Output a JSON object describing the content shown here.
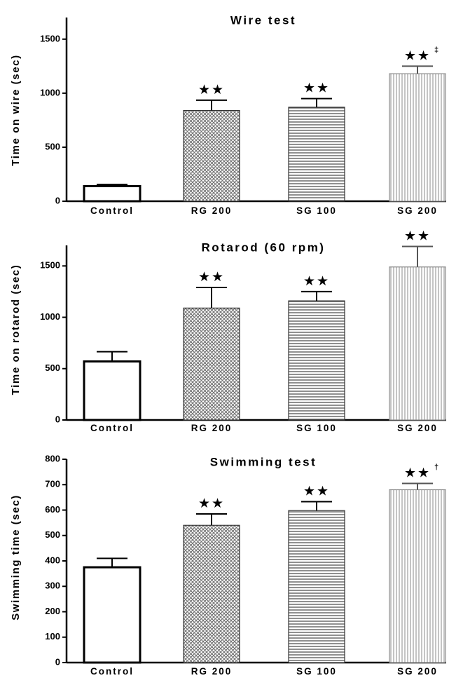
{
  "chart_data": [
    {
      "type": "bar",
      "title": "Wire test",
      "ylabel": "Time on wire (sec)",
      "xlabel": "",
      "categories": [
        "Control",
        "RG 200",
        "SG 100",
        "SG 200"
      ],
      "values": [
        140,
        840,
        870,
        1180
      ],
      "errors": [
        15,
        95,
        80,
        70
      ],
      "ylim": [
        0,
        1700
      ],
      "yticks": [
        "0",
        "500",
        "1000",
        "1500"
      ],
      "annotations": [
        {
          "category": "RG 200",
          "stars": "★★",
          "symbol": ""
        },
        {
          "category": "SG 100",
          "stars": "★★",
          "symbol": ""
        },
        {
          "category": "SG 200",
          "stars": "★★",
          "symbol": "‡"
        }
      ],
      "fills": [
        "white",
        "crosshatch",
        "horizontal-lines",
        "vertical-lines"
      ]
    },
    {
      "type": "bar",
      "title": "Rotarod (60 rpm)",
      "ylabel": "Time on rotarod (sec)",
      "xlabel": "",
      "categories": [
        "Control",
        "RG 200",
        "SG 100",
        "SG 200"
      ],
      "values": [
        570,
        1090,
        1160,
        1490
      ],
      "errors": [
        95,
        200,
        90,
        200
      ],
      "ylim": [
        0,
        1700
      ],
      "yticks": [
        "0",
        "500",
        "1000",
        "1500"
      ],
      "annotations": [
        {
          "category": "RG 200",
          "stars": "★★",
          "symbol": ""
        },
        {
          "category": "SG 100",
          "stars": "★★",
          "symbol": ""
        },
        {
          "category": "SG 200",
          "stars": "★★",
          "symbol": ""
        }
      ],
      "fills": [
        "white",
        "crosshatch",
        "horizontal-lines",
        "vertical-lines"
      ]
    },
    {
      "type": "bar",
      "title": "Swimming test",
      "ylabel": "Swimming time (sec)",
      "xlabel": "",
      "categories": [
        "Control",
        "RG 200",
        "SG 100",
        "SG 200"
      ],
      "values": [
        375,
        540,
        598,
        680
      ],
      "errors": [
        35,
        45,
        35,
        25
      ],
      "ylim": [
        0,
        800
      ],
      "yticks": [
        "0",
        "100",
        "200",
        "300",
        "400",
        "500",
        "600",
        "700",
        "800"
      ],
      "annotations": [
        {
          "category": "RG 200",
          "stars": "★★",
          "symbol": ""
        },
        {
          "category": "SG 100",
          "stars": "★★",
          "symbol": ""
        },
        {
          "category": "SG 200",
          "stars": "★★",
          "symbol": "†"
        }
      ],
      "fills": [
        "white",
        "crosshatch",
        "horizontal-lines",
        "vertical-lines"
      ]
    }
  ]
}
